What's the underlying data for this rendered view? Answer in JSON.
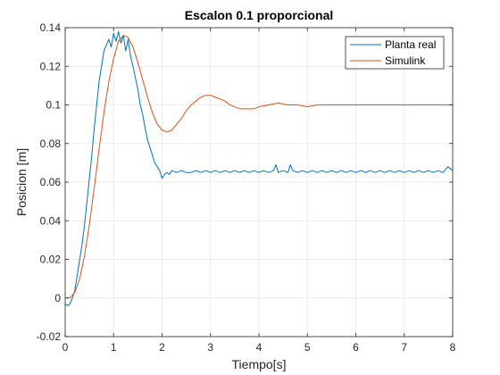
{
  "colors": {
    "planta_real": "#0072BD",
    "simulink": "#D95319",
    "grid": "#e6e6e6",
    "axis": "#262626"
  },
  "chart_data": {
    "type": "line",
    "title": "Escalon 0.1 proporcional",
    "xlabel": "Tiempo[s]",
    "ylabel": "Posicion [m]",
    "xlim": [
      0,
      8
    ],
    "ylim": [
      -0.02,
      0.14
    ],
    "x_ticks": [
      "0",
      "1",
      "2",
      "3",
      "4",
      "5",
      "6",
      "7",
      "8"
    ],
    "y_ticks": [
      "-0.02",
      "0",
      "0.02",
      "0.04",
      "0.06",
      "0.08",
      "0.1",
      "0.12",
      "0.14"
    ],
    "grid": true,
    "legend_position": "top-right",
    "series": [
      {
        "name": "Planta real",
        "color": "#0072BD",
        "x": [
          0,
          0.05,
          0.1,
          0.15,
          0.2,
          0.25,
          0.3,
          0.35,
          0.4,
          0.45,
          0.5,
          0.55,
          0.6,
          0.65,
          0.7,
          0.75,
          0.8,
          0.85,
          0.9,
          0.95,
          1.0,
          1.05,
          1.1,
          1.15,
          1.2,
          1.25,
          1.3,
          1.35,
          1.4,
          1.45,
          1.5,
          1.55,
          1.6,
          1.65,
          1.7,
          1.75,
          1.8,
          1.85,
          1.9,
          1.95,
          2.0,
          2.05,
          2.1,
          2.15,
          2.2,
          2.3,
          2.4,
          2.5,
          2.6,
          2.7,
          2.8,
          2.9,
          3.0,
          3.1,
          3.2,
          3.3,
          3.4,
          3.5,
          3.6,
          3.7,
          3.8,
          3.9,
          4.0,
          4.1,
          4.2,
          4.3,
          4.35,
          4.4,
          4.5,
          4.6,
          4.65,
          4.7,
          4.8,
          4.9,
          5.0,
          5.1,
          5.2,
          5.3,
          5.4,
          5.5,
          5.6,
          5.7,
          5.8,
          5.9,
          6.0,
          6.1,
          6.2,
          6.3,
          6.4,
          6.5,
          6.6,
          6.7,
          6.8,
          6.9,
          7.0,
          7.1,
          7.2,
          7.3,
          7.4,
          7.5,
          7.6,
          7.7,
          7.8,
          7.9,
          8.0
        ],
        "y": [
          -0.003,
          -0.004,
          -0.003,
          0.0,
          0.004,
          0.012,
          0.02,
          0.028,
          0.038,
          0.05,
          0.062,
          0.074,
          0.088,
          0.1,
          0.112,
          0.12,
          0.128,
          0.131,
          0.134,
          0.13,
          0.137,
          0.133,
          0.138,
          0.132,
          0.136,
          0.128,
          0.134,
          0.125,
          0.12,
          0.114,
          0.108,
          0.1,
          0.095,
          0.088,
          0.082,
          0.078,
          0.074,
          0.07,
          0.068,
          0.066,
          0.062,
          0.064,
          0.065,
          0.064,
          0.066,
          0.065,
          0.066,
          0.065,
          0.065,
          0.066,
          0.065,
          0.066,
          0.065,
          0.066,
          0.065,
          0.066,
          0.065,
          0.066,
          0.065,
          0.066,
          0.065,
          0.066,
          0.065,
          0.066,
          0.065,
          0.066,
          0.069,
          0.065,
          0.066,
          0.065,
          0.069,
          0.066,
          0.065,
          0.066,
          0.065,
          0.066,
          0.065,
          0.066,
          0.065,
          0.066,
          0.065,
          0.066,
          0.065,
          0.066,
          0.065,
          0.066,
          0.065,
          0.066,
          0.065,
          0.066,
          0.065,
          0.066,
          0.065,
          0.066,
          0.065,
          0.066,
          0.065,
          0.066,
          0.065,
          0.066,
          0.065,
          0.066,
          0.065,
          0.068,
          0.066
        ]
      },
      {
        "name": "Simulink",
        "color": "#D95319",
        "x": [
          0,
          0.1,
          0.2,
          0.3,
          0.4,
          0.5,
          0.6,
          0.7,
          0.8,
          0.9,
          1.0,
          1.1,
          1.2,
          1.3,
          1.4,
          1.5,
          1.6,
          1.7,
          1.8,
          1.9,
          2.0,
          2.1,
          2.2,
          2.3,
          2.4,
          2.5,
          2.6,
          2.7,
          2.8,
          2.9,
          3.0,
          3.1,
          3.2,
          3.3,
          3.4,
          3.5,
          3.6,
          3.7,
          3.8,
          3.9,
          4.0,
          4.2,
          4.4,
          4.6,
          4.8,
          5.0,
          5.2,
          5.4,
          5.6,
          5.8,
          6.0,
          6.2,
          6.4,
          6.6,
          6.8,
          7.0,
          7.2,
          7.4,
          7.6,
          7.8,
          8.0
        ],
        "y": [
          0.0,
          0.0,
          0.003,
          0.01,
          0.022,
          0.038,
          0.057,
          0.077,
          0.096,
          0.112,
          0.124,
          0.133,
          0.136,
          0.135,
          0.13,
          0.122,
          0.113,
          0.104,
          0.096,
          0.09,
          0.087,
          0.086,
          0.087,
          0.09,
          0.093,
          0.097,
          0.1,
          0.102,
          0.104,
          0.105,
          0.105,
          0.104,
          0.103,
          0.102,
          0.1,
          0.099,
          0.098,
          0.098,
          0.098,
          0.098,
          0.099,
          0.1,
          0.101,
          0.1,
          0.1,
          0.099,
          0.1,
          0.1,
          0.1,
          0.1,
          0.1,
          0.1,
          0.1,
          0.1,
          0.1,
          0.1,
          0.1,
          0.1,
          0.1,
          0.1,
          0.1
        ]
      }
    ]
  }
}
